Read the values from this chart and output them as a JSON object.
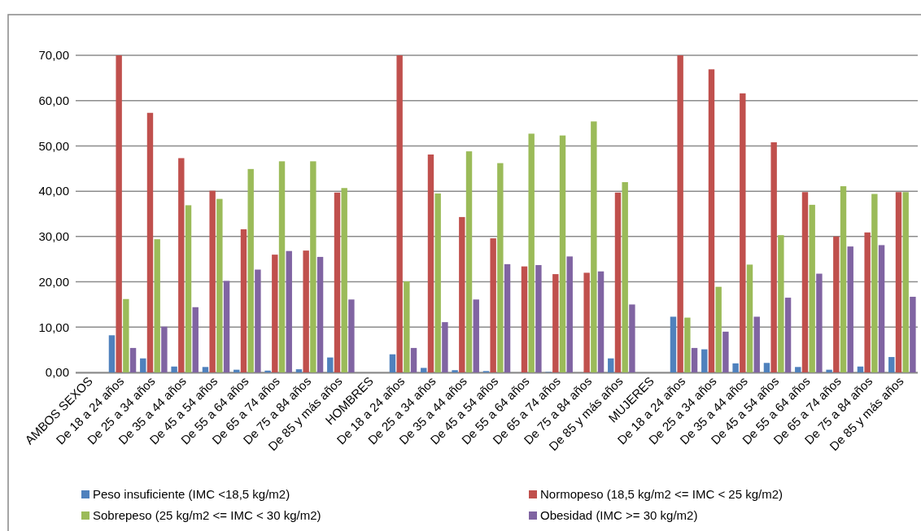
{
  "chart_data": {
    "type": "bar",
    "categories": [
      "AMBOS SEXOS",
      "De 18 a 24 años",
      "De 25 a 34 años",
      "De 35 a 44 años",
      "De 45 a 54 años",
      "De 55 a 64 años",
      "De 65 a 74 años",
      "De 75 a 84 años",
      "De 85 y más años",
      "HOMBRES",
      "De 18 a 24 años",
      "De 25 a 34 años",
      "De 35 a 44 años",
      "De 45 a 54 años",
      "De 55 a 64 años",
      "De 65 a 74 años",
      "De 75 a 84 años",
      "De 85 y más años",
      "MUJERES",
      "De 18 a 24 años",
      "De 25 a 34 años",
      "De 35 a 44 años",
      "De 45 a 54 años",
      "De 55 a 64 años",
      "De 65 a 74 años",
      "De 75 a 84 años",
      "De 85 y más años"
    ],
    "series": [
      {
        "name": "Peso insuficiente (IMC <18,5 kg/m2)",
        "color": "#4f81bd",
        "values": [
          null,
          8.2,
          3.1,
          1.3,
          1.2,
          0.6,
          0.4,
          0.7,
          3.3,
          null,
          4.0,
          1.0,
          0.5,
          0.3,
          0,
          0.1,
          0,
          3.1,
          null,
          12.3,
          5.1,
          2.0,
          2.1,
          1.2,
          0.6,
          1.3,
          3.4
        ]
      },
      {
        "name": "Normopeso (18,5 kg/m2 <= IMC < 25 kg/m2)",
        "color": "#c0504d",
        "values": [
          null,
          70,
          57.3,
          47.3,
          40.1,
          31.6,
          26.0,
          26.9,
          39.7,
          null,
          70,
          48.1,
          34.3,
          29.6,
          23.4,
          21.7,
          22.0,
          39.7,
          null,
          70,
          66.9,
          61.6,
          50.8,
          39.8,
          30.0,
          30.9,
          39.8
        ]
      },
      {
        "name": "Sobrepeso (25 kg/m2 <= IMC < 30 kg/m2)",
        "color": "#9bbb59",
        "values": [
          null,
          16.2,
          29.4,
          36.9,
          38.3,
          44.9,
          46.6,
          46.6,
          40.7,
          null,
          20.1,
          39.5,
          48.8,
          46.2,
          52.7,
          52.3,
          55.4,
          42.0,
          null,
          12.1,
          18.9,
          23.8,
          30.3,
          37.0,
          41.1,
          39.4,
          39.8
        ]
      },
      {
        "name": "Obesidad (IMC >= 30 kg/m2)",
        "color": "#8064a2",
        "values": [
          null,
          5.4,
          10.1,
          14.4,
          20.2,
          22.7,
          26.8,
          25.5,
          16.1,
          null,
          5.4,
          11.1,
          16.1,
          23.9,
          23.7,
          25.6,
          22.3,
          15.0,
          null,
          5.4,
          9.0,
          12.3,
          16.5,
          21.8,
          27.8,
          28.1,
          16.7
        ]
      }
    ],
    "ylim": [
      0,
      70
    ],
    "yticks": [
      {
        "value": 0,
        "label": "0,00"
      },
      {
        "value": 10,
        "label": "10,00"
      },
      {
        "value": 20,
        "label": "20,00"
      },
      {
        "value": 30,
        "label": "30,00"
      },
      {
        "value": 40,
        "label": "40,00"
      },
      {
        "value": 50,
        "label": "50,00"
      },
      {
        "value": 60,
        "label": "60,00"
      },
      {
        "value": 70,
        "label": "70,00"
      }
    ],
    "grid": "y",
    "legend": "bottom"
  }
}
